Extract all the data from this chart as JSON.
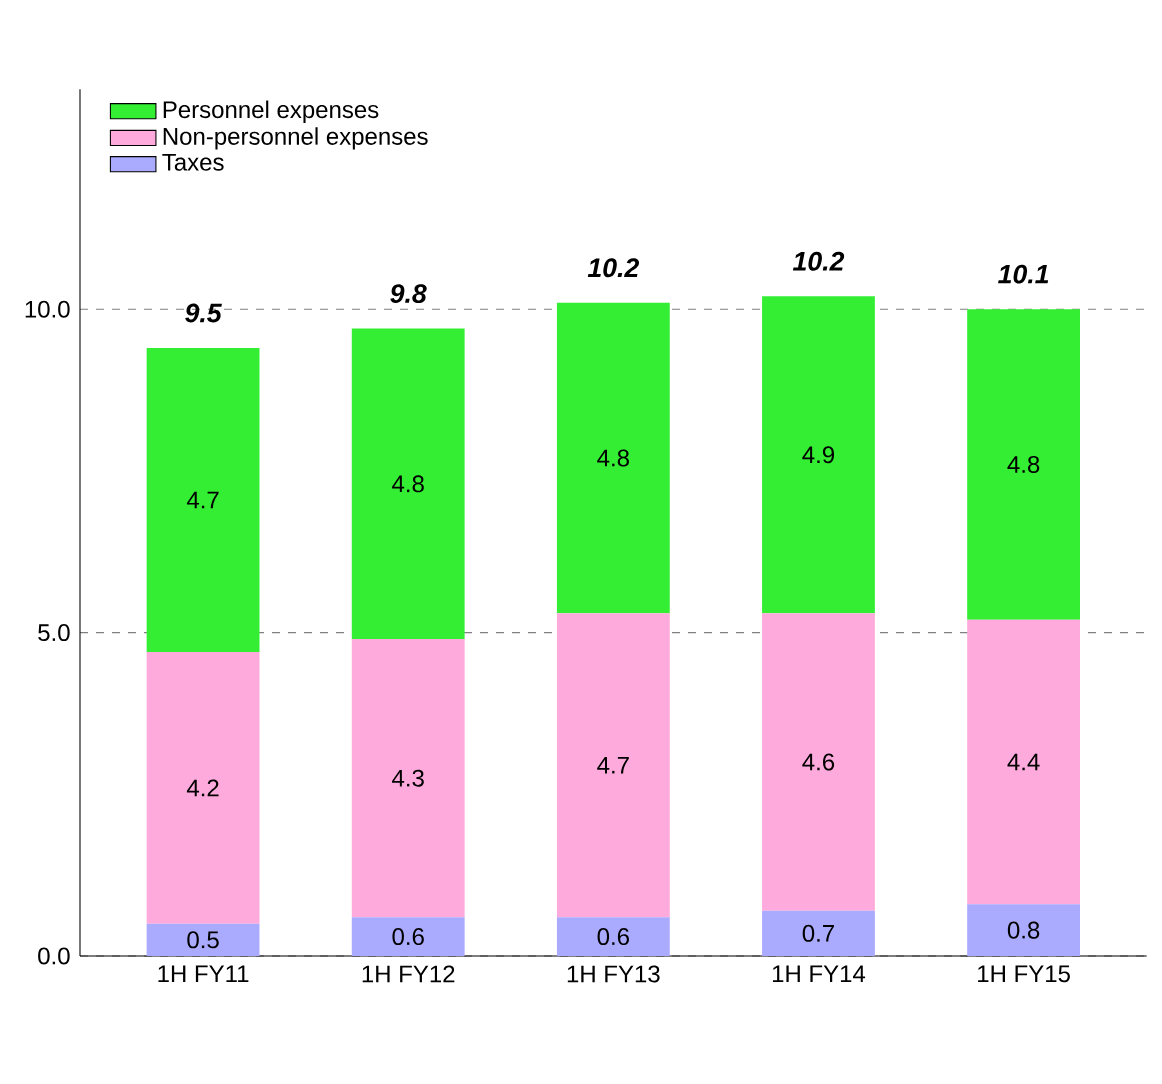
{
  "chart_data": {
    "type": "bar",
    "stacked": true,
    "categories": [
      "1H FY11",
      "1H FY12",
      "1H FY13",
      "1H FY14",
      "1H FY15"
    ],
    "series": [
      {
        "name": "Taxes",
        "color": "#aaaaff",
        "values": [
          0.5,
          0.6,
          0.6,
          0.7,
          0.8
        ]
      },
      {
        "name": "Non-personnel expenses",
        "color": "#ffaadd",
        "values": [
          4.2,
          4.3,
          4.7,
          4.6,
          4.4
        ]
      },
      {
        "name": "Personnel expenses",
        "color": "#33ee33",
        "values": [
          4.7,
          4.8,
          4.8,
          4.9,
          4.8
        ]
      }
    ],
    "ylim": [
      0,
      13.4
    ],
    "yticks": [
      {
        "value": 0,
        "label": "0.0"
      },
      {
        "value": 5,
        "label": "5.0"
      },
      {
        "value": 10,
        "label": "10.0"
      }
    ],
    "grid": "y",
    "legend": "top left",
    "data_labels": true,
    "totals": [
      "9.5",
      "9.8",
      "10.2",
      "10.2",
      "10.1"
    ]
  }
}
